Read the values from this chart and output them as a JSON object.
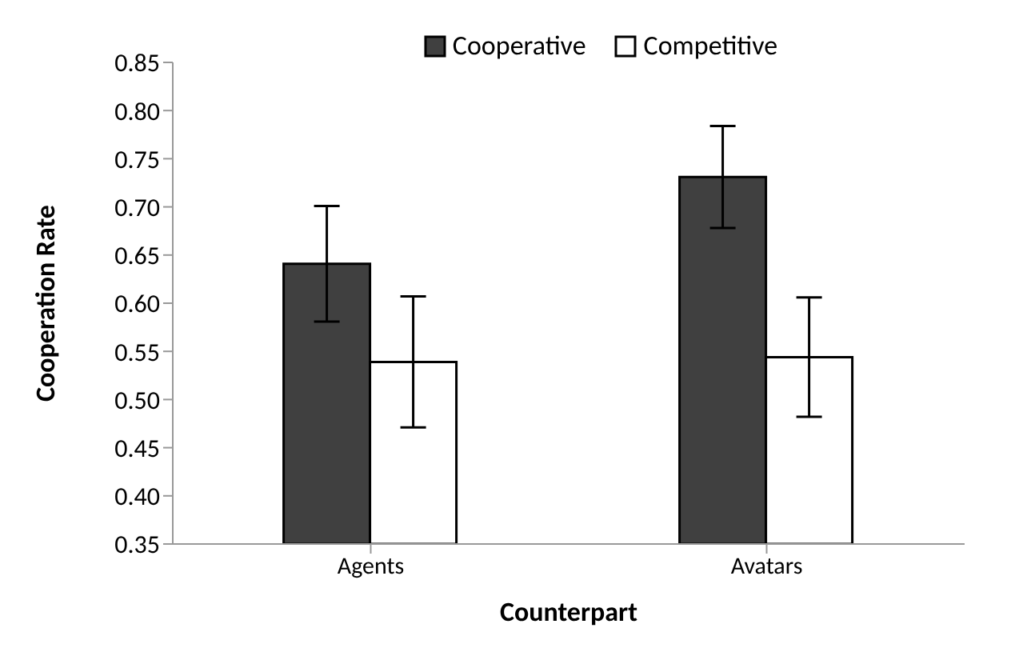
{
  "chart_data": {
    "type": "bar",
    "xlabel": "Counterpart",
    "ylabel": "Cooperation Rate",
    "categories": [
      "Agents",
      "Avatars"
    ],
    "series": [
      {
        "name": "Cooperative",
        "color": "#404040",
        "values": [
          0.641,
          0.731
        ],
        "errors": [
          0.06,
          0.053
        ]
      },
      {
        "name": "Competitive",
        "color": "#ffffff",
        "values": [
          0.539,
          0.544
        ],
        "errors": [
          0.068,
          0.062
        ]
      }
    ],
    "ylim": [
      0.35,
      0.85
    ],
    "yticks": [
      {
        "value": 0.35,
        "label": "0.35"
      },
      {
        "value": 0.4,
        "label": "0.40"
      },
      {
        "value": 0.45,
        "label": "0.45"
      },
      {
        "value": 0.5,
        "label": "0.50"
      },
      {
        "value": 0.55,
        "label": "0.55"
      },
      {
        "value": 0.6,
        "label": "0.60"
      },
      {
        "value": 0.65,
        "label": "0.65"
      },
      {
        "value": 0.7,
        "label": "0.70"
      },
      {
        "value": 0.75,
        "label": "0.75"
      },
      {
        "value": 0.8,
        "label": "0.80"
      },
      {
        "value": 0.85,
        "label": "0.85"
      }
    ],
    "grid": false,
    "legend": "top"
  }
}
